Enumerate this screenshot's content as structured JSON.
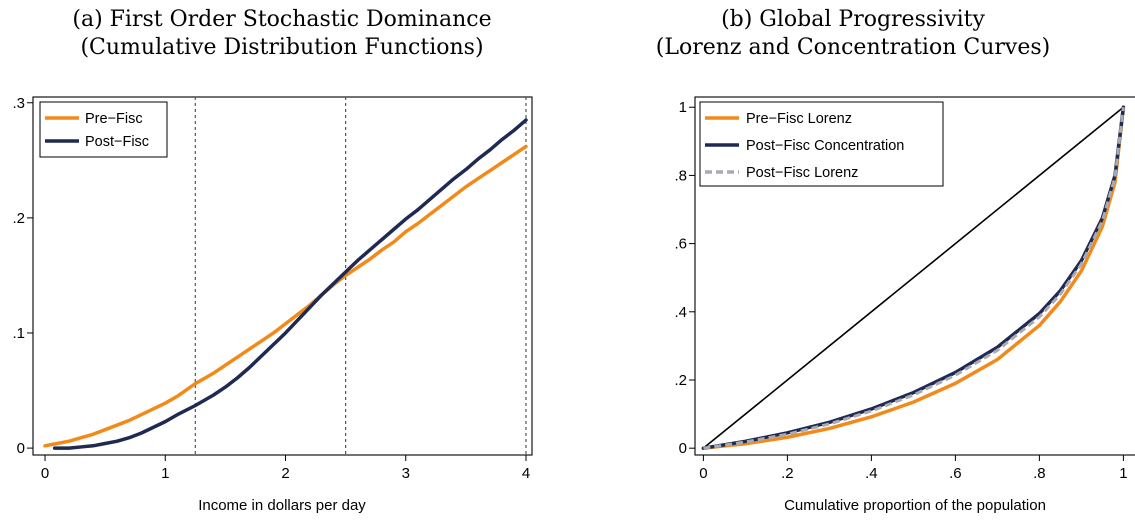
{
  "chart_data": [
    {
      "panel": "a",
      "type": "line",
      "title_line1": "(a)  First Order Stochastic Dominance",
      "title_line2": "(Cumulative Distribution Functions)",
      "xlabel": "Income in dollars per day",
      "ylabel": "",
      "xlim": [
        -0.1,
        4.05
      ],
      "ylim": [
        -0.006,
        0.305
      ],
      "xticks": [
        {
          "v": 0,
          "label": "0"
        },
        {
          "v": 1,
          "label": "1"
        },
        {
          "v": 2,
          "label": "2"
        },
        {
          "v": 3,
          "label": "3"
        },
        {
          "v": 4,
          "label": "4"
        }
      ],
      "yticks": [
        {
          "v": 0,
          "label": "0"
        },
        {
          "v": 0.1,
          "label": ".1"
        },
        {
          "v": 0.2,
          "label": ".2"
        },
        {
          "v": 0.3,
          "label": ".3"
        }
      ],
      "grid": false,
      "legend_position": "top-left",
      "reference_lines_x": [
        1.25,
        2.5,
        4
      ],
      "series": [
        {
          "name": "Pre−Fisc",
          "color": "#f28a1a",
          "style": "solid",
          "x": [
            0,
            0.1,
            0.2,
            0.3,
            0.4,
            0.5,
            0.6,
            0.7,
            0.8,
            0.9,
            1.0,
            1.1,
            1.25,
            1.4,
            1.5,
            1.6,
            1.7,
            1.8,
            1.9,
            2.0,
            2.1,
            2.2,
            2.3,
            2.4,
            2.5,
            2.6,
            2.7,
            2.8,
            2.9,
            3.0,
            3.1,
            3.2,
            3.3,
            3.4,
            3.5,
            3.6,
            3.7,
            3.8,
            3.9,
            4.0
          ],
          "y": [
            0.002,
            0.004,
            0.006,
            0.009,
            0.012,
            0.016,
            0.02,
            0.024,
            0.029,
            0.034,
            0.039,
            0.045,
            0.056,
            0.065,
            0.072,
            0.079,
            0.086,
            0.093,
            0.1,
            0.108,
            0.116,
            0.124,
            0.133,
            0.142,
            0.15,
            0.157,
            0.164,
            0.172,
            0.179,
            0.188,
            0.195,
            0.203,
            0.211,
            0.219,
            0.227,
            0.234,
            0.241,
            0.248,
            0.255,
            0.262
          ]
        },
        {
          "name": "Post−Fisc",
          "color": "#1f2a52",
          "style": "solid",
          "x": [
            0.08,
            0.2,
            0.3,
            0.4,
            0.5,
            0.6,
            0.7,
            0.8,
            0.9,
            1.0,
            1.1,
            1.25,
            1.4,
            1.5,
            1.6,
            1.7,
            1.8,
            1.9,
            2.0,
            2.1,
            2.2,
            2.3,
            2.4,
            2.5,
            2.6,
            2.7,
            2.8,
            2.9,
            3.0,
            3.1,
            3.2,
            3.3,
            3.4,
            3.5,
            3.6,
            3.7,
            3.8,
            3.9,
            4.0
          ],
          "y": [
            0.0,
            0.0,
            0.001,
            0.002,
            0.004,
            0.006,
            0.009,
            0.013,
            0.018,
            0.023,
            0.029,
            0.037,
            0.046,
            0.053,
            0.061,
            0.07,
            0.08,
            0.09,
            0.1,
            0.111,
            0.122,
            0.133,
            0.143,
            0.153,
            0.163,
            0.172,
            0.181,
            0.19,
            0.199,
            0.207,
            0.216,
            0.225,
            0.234,
            0.242,
            0.251,
            0.259,
            0.268,
            0.276,
            0.285
          ]
        }
      ]
    },
    {
      "panel": "b",
      "type": "line",
      "title_line1": "(b)  Global Progressivity",
      "title_line2": "(Lorenz and Concentration Curves)",
      "xlabel": "Cumulative proportion of the population",
      "ylabel": "",
      "xlim": [
        -0.02,
        1.03
      ],
      "ylim": [
        -0.02,
        1.03
      ],
      "xticks": [
        {
          "v": 0,
          "label": "0"
        },
        {
          "v": 0.2,
          "label": ".2"
        },
        {
          "v": 0.4,
          "label": ".4"
        },
        {
          "v": 0.6,
          "label": ".6"
        },
        {
          "v": 0.8,
          "label": ".8"
        },
        {
          "v": 1,
          "label": "1"
        }
      ],
      "yticks": [
        {
          "v": 0,
          "label": "0"
        },
        {
          "v": 0.2,
          "label": ".2"
        },
        {
          "v": 0.4,
          "label": ".4"
        },
        {
          "v": 0.6,
          "label": ".6"
        },
        {
          "v": 0.8,
          "label": ".8"
        },
        {
          "v": 1,
          "label": "1"
        }
      ],
      "grid": false,
      "legend_position": "top-left",
      "equality_line": {
        "x": [
          0,
          1
        ],
        "y": [
          0,
          1
        ],
        "color": "#000000"
      },
      "series": [
        {
          "name": "Pre−Fisc Lorenz",
          "color": "#f28a1a",
          "style": "solid",
          "x": [
            0,
            0.1,
            0.2,
            0.3,
            0.4,
            0.5,
            0.6,
            0.7,
            0.8,
            0.85,
            0.9,
            0.95,
            0.98,
            1.0
          ],
          "y": [
            0,
            0.013,
            0.032,
            0.058,
            0.092,
            0.135,
            0.19,
            0.26,
            0.36,
            0.43,
            0.52,
            0.65,
            0.78,
            1.0
          ]
        },
        {
          "name": "Post−Fisc Concentration",
          "color": "#1f2a52",
          "style": "solid",
          "x": [
            0,
            0.1,
            0.2,
            0.3,
            0.4,
            0.5,
            0.6,
            0.7,
            0.8,
            0.85,
            0.9,
            0.95,
            0.98,
            1.0
          ],
          "y": [
            0,
            0.02,
            0.045,
            0.076,
            0.115,
            0.163,
            0.222,
            0.296,
            0.395,
            0.462,
            0.55,
            0.675,
            0.8,
            1.0
          ]
        },
        {
          "name": "Post−Fisc Lorenz",
          "color": "#a9aab2",
          "style": "dashed",
          "x": [
            0,
            0.1,
            0.2,
            0.3,
            0.4,
            0.5,
            0.6,
            0.7,
            0.8,
            0.85,
            0.9,
            0.95,
            0.98,
            1.0
          ],
          "y": [
            0,
            0.018,
            0.041,
            0.071,
            0.109,
            0.156,
            0.214,
            0.287,
            0.385,
            0.452,
            0.54,
            0.667,
            0.795,
            1.0
          ]
        }
      ]
    }
  ]
}
